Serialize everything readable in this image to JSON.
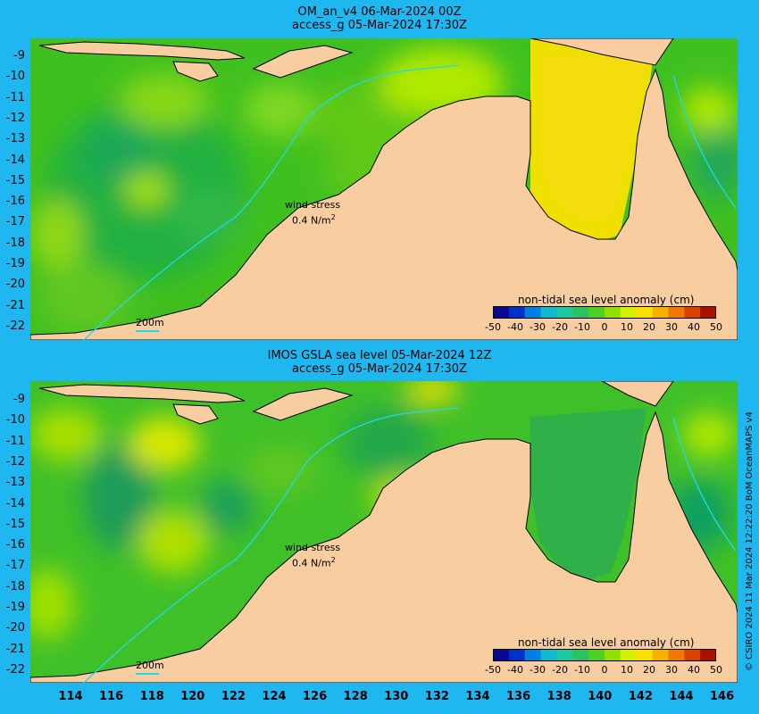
{
  "panels": [
    {
      "title_line1": "OM_an_v4  06-Mar-2024 00Z",
      "title_line2": "access_g 05-Mar-2024 17:30Z",
      "wind_label": "wind stress",
      "wind_value": "0.4 N/m",
      "wind_exp": "2",
      "scale_label": "200m",
      "colorbar_title": "non-tidal sea level anomaly (cm)"
    },
    {
      "title_line1": "IMOS GSLA sea level  05-Mar-2024 12Z",
      "title_line2": "access_g 05-Mar-2024 17:30Z",
      "wind_label": "wind stress",
      "wind_value": "0.4 N/m",
      "wind_exp": "2",
      "scale_label": "200m",
      "colorbar_title": "non-tidal sea level anomaly (cm)"
    }
  ],
  "latitude_labels": [
    "-9",
    "-10",
    "-11",
    "-12",
    "-13",
    "-14",
    "-15",
    "-16",
    "-17",
    "-18",
    "-19",
    "-20",
    "-21",
    "-22"
  ],
  "longitude_labels": [
    "114",
    "116",
    "118",
    "120",
    "122",
    "124",
    "126",
    "128",
    "130",
    "132",
    "134",
    "136",
    "138",
    "140",
    "142",
    "144",
    "146"
  ],
  "colorbar_ticks": [
    "-50",
    "-40",
    "-30",
    "-20",
    "-10",
    "0",
    "10",
    "20",
    "30",
    "40",
    "50"
  ],
  "colorbar_colors": [
    "#08088f",
    "#0030c8",
    "#0080e0",
    "#10b8d0",
    "#20c8a0",
    "#30c060",
    "#50d020",
    "#90e000",
    "#d8f000",
    "#f8e000",
    "#f8b000",
    "#f07800",
    "#d84000",
    "#a81000"
  ],
  "land_color": "#f8cda0",
  "background_color": "#1fb7f0",
  "credit": "© CSIRO 2024   11 Mar 2024 12:22:20 BoM OceanMAPS v4"
}
